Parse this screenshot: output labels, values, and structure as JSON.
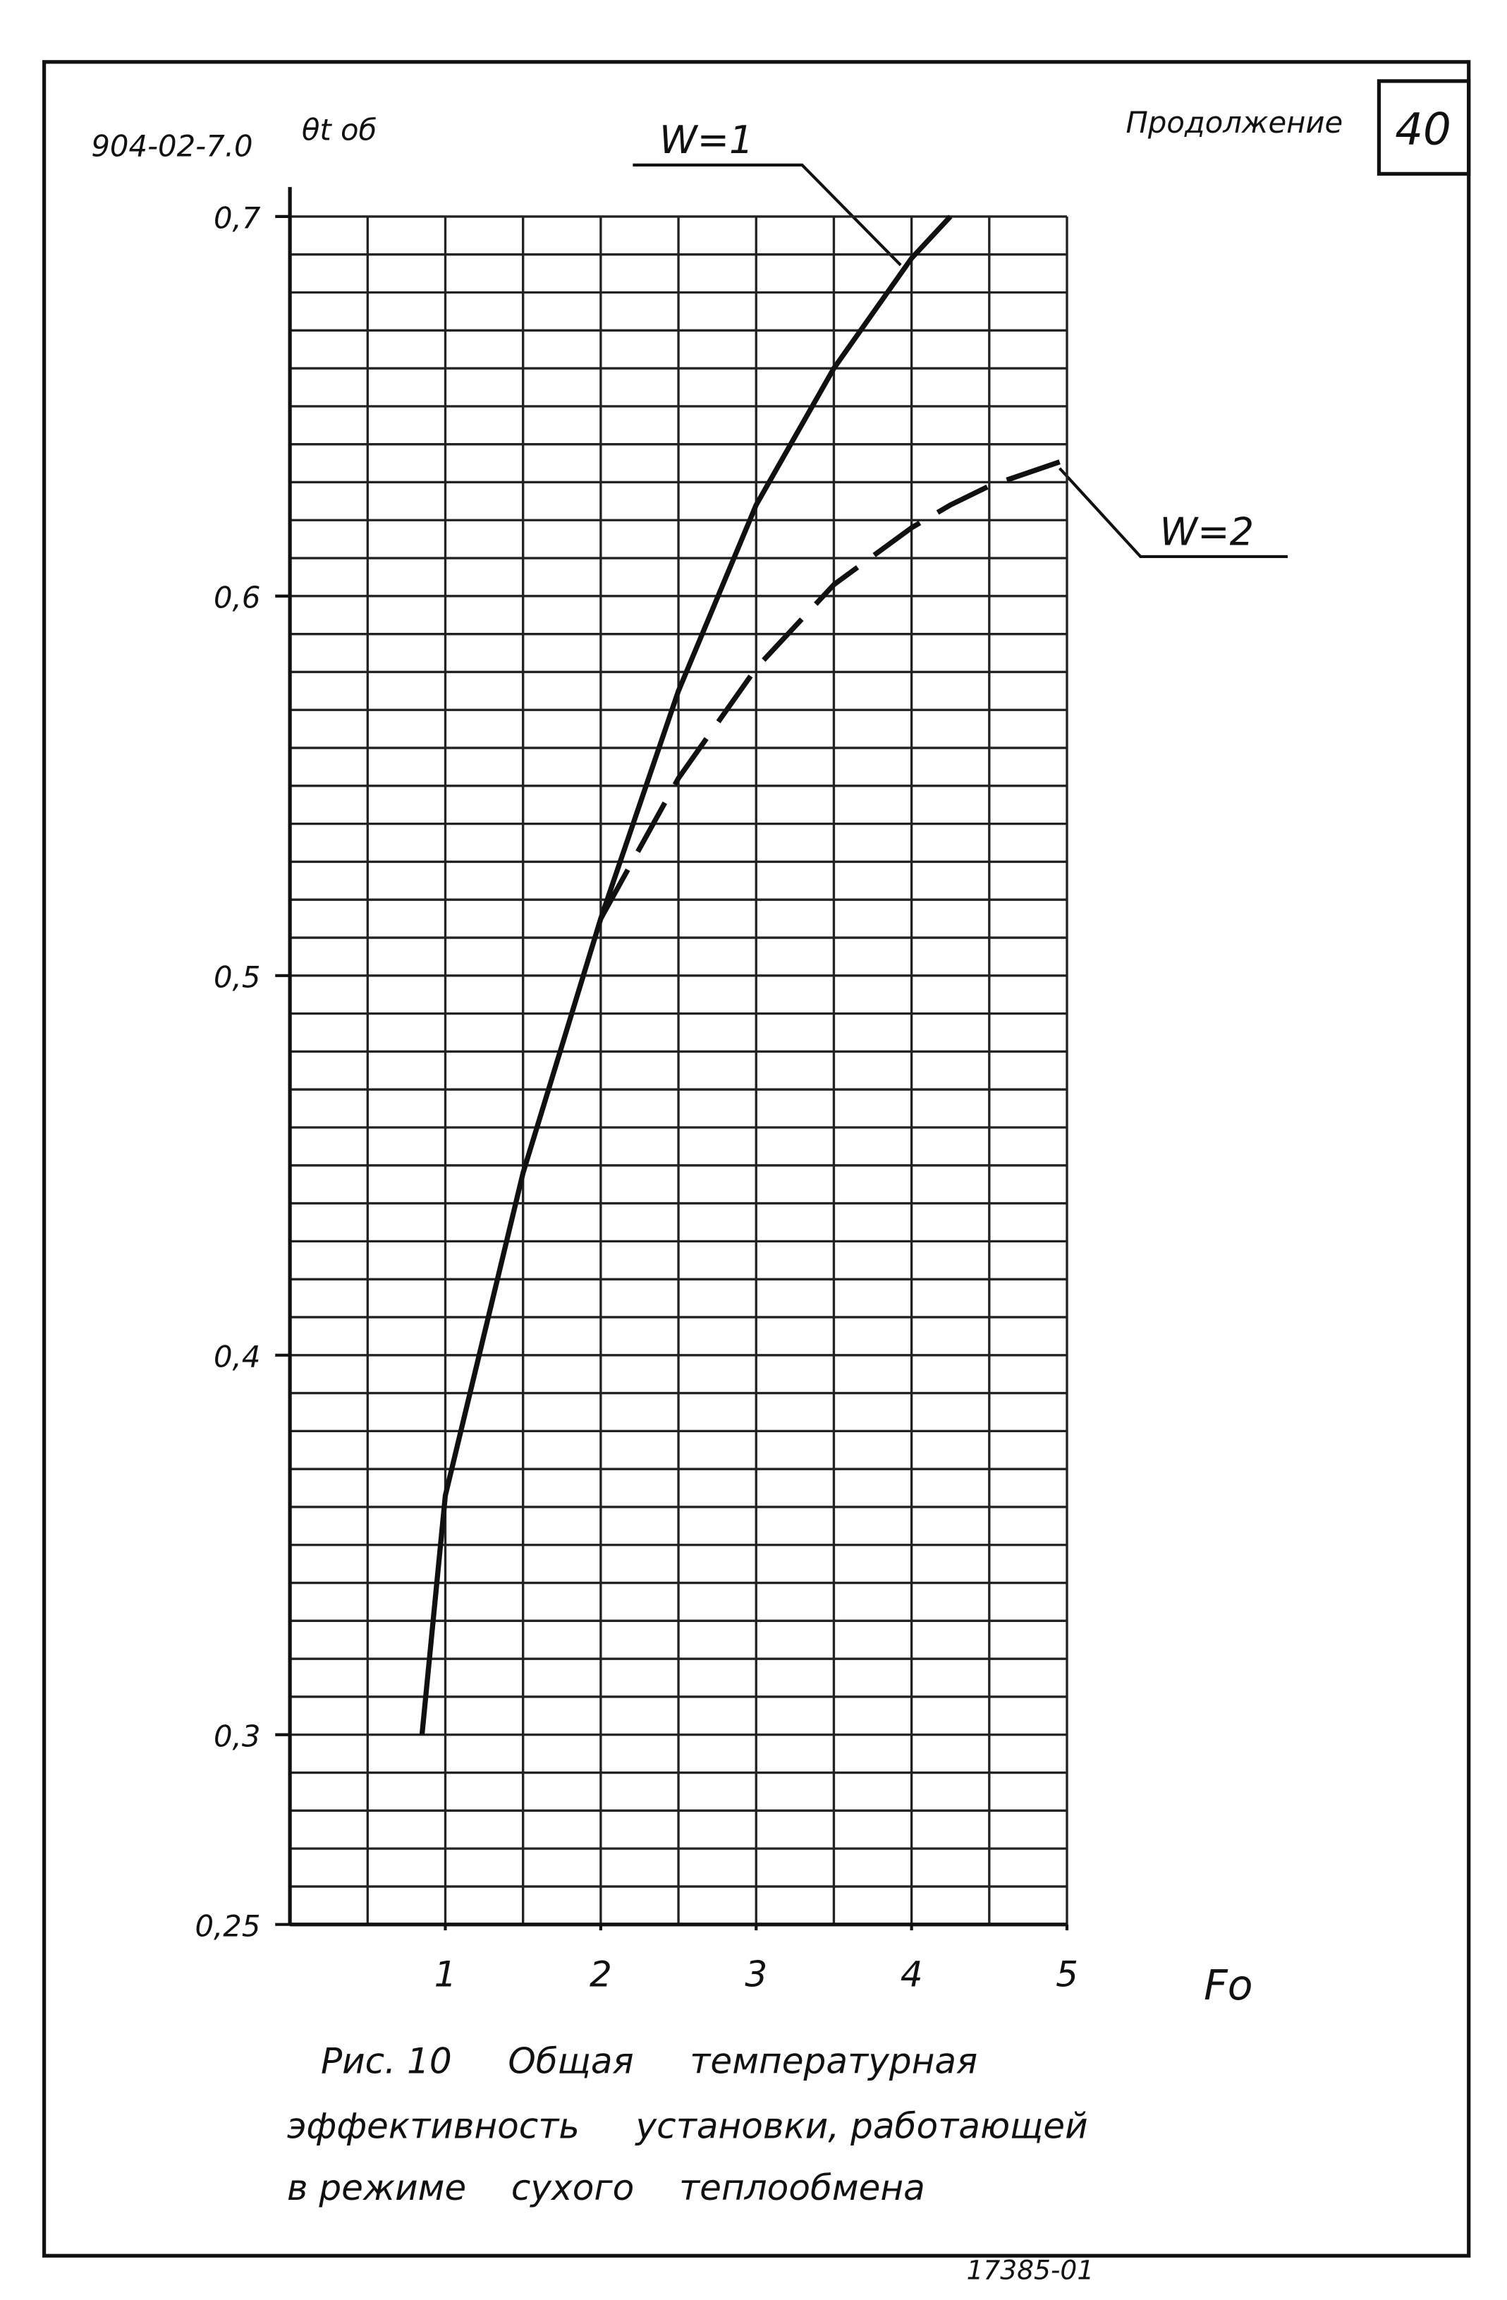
{
  "chart_data": {
    "type": "line",
    "doc_code": "904-02-7.0",
    "continuation": "Продолжение",
    "page_number": "40",
    "ylabel": "θt об",
    "xlabel": "Fo",
    "x": [
      0.85,
      1,
      1.5,
      2,
      2.5,
      3,
      3.5,
      4,
      4.25,
      4.5,
      5
    ],
    "series": [
      {
        "name": "W=1",
        "color": "#111111",
        "line_style": "solid",
        "values": [
          0.3,
          0.363,
          0.448,
          0.515,
          0.575,
          0.624,
          0.66,
          0.689,
          0.7,
          null,
          null
        ]
      },
      {
        "name": "W=2",
        "color": "#111111",
        "line_style": "dashed",
        "values": [
          null,
          null,
          null,
          0.515,
          0.552,
          0.581,
          0.603,
          0.618,
          0.624,
          0.629,
          0.636
        ]
      }
    ],
    "xlim": [
      0,
      5
    ],
    "ylim": [
      0.25,
      0.7
    ],
    "xticks": [
      1,
      2,
      3,
      4,
      5
    ],
    "yticks": [
      {
        "value": 0.25,
        "label": "0,25"
      },
      {
        "value": 0.3,
        "label": "0,3"
      },
      {
        "value": 0.4,
        "label": "0,4"
      },
      {
        "value": 0.5,
        "label": "0,5"
      },
      {
        "value": 0.6,
        "label": "0,6"
      },
      {
        "value": 0.7,
        "label": "0,7"
      }
    ],
    "grid": true,
    "caption": [
      "Рис. 10     Общая     температурная",
      "эффективность     установки, работающей",
      "в режиме    сухого    теплообмена"
    ],
    "drawing_number": "17385-01"
  }
}
